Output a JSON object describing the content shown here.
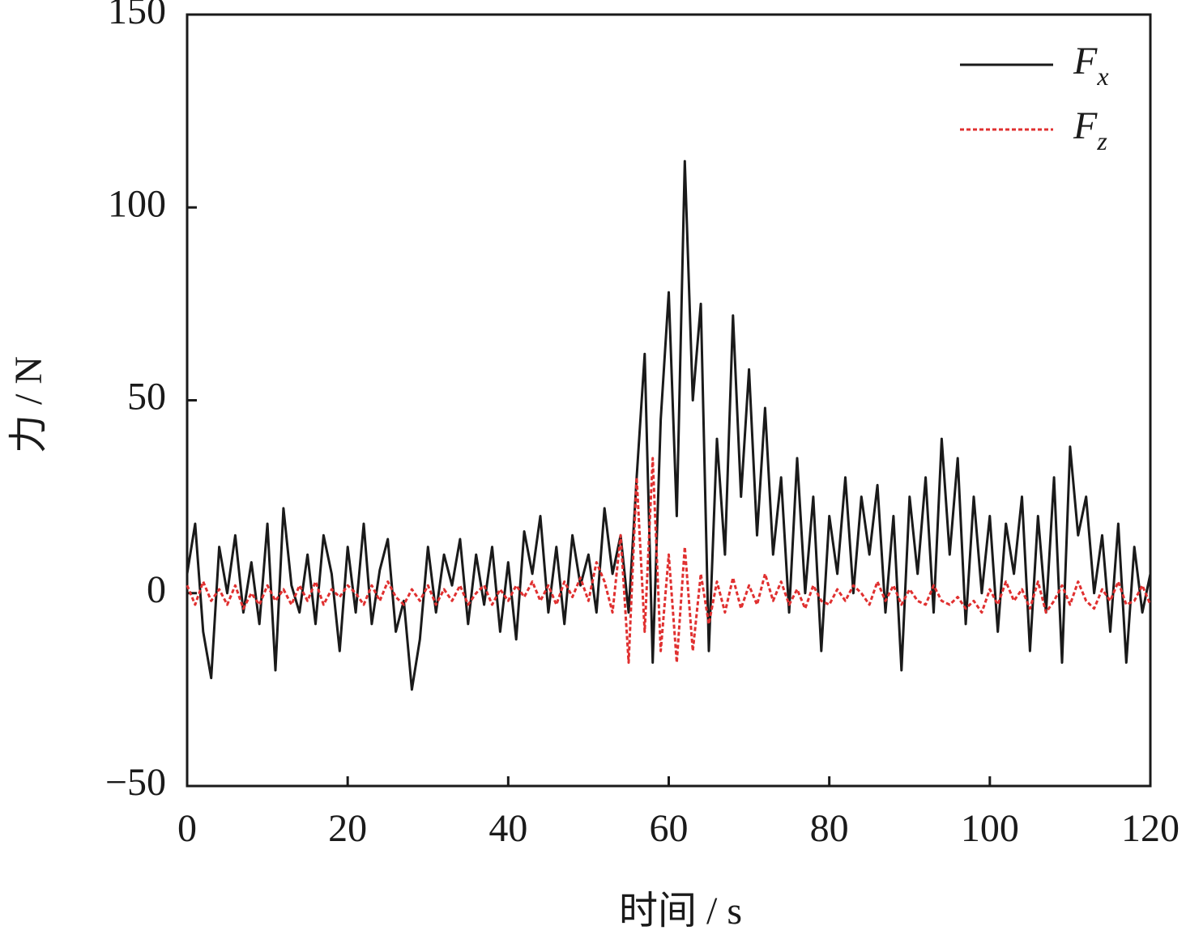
{
  "chart_data": {
    "type": "line",
    "xlabel": "时间 / s",
    "ylabel": "力 / N",
    "x": [
      0,
      1,
      2,
      3,
      4,
      5,
      6,
      7,
      8,
      9,
      10,
      11,
      12,
      13,
      14,
      15,
      16,
      17,
      18,
      19,
      20,
      21,
      22,
      23,
      24,
      25,
      26,
      27,
      28,
      29,
      30,
      31,
      32,
      33,
      34,
      35,
      36,
      37,
      38,
      39,
      40,
      41,
      42,
      43,
      44,
      45,
      46,
      47,
      48,
      49,
      50,
      51,
      52,
      53,
      54,
      55,
      56,
      57,
      58,
      59,
      60,
      61,
      62,
      63,
      64,
      65,
      66,
      67,
      68,
      69,
      70,
      71,
      72,
      73,
      74,
      75,
      76,
      77,
      78,
      79,
      80,
      81,
      82,
      83,
      84,
      85,
      86,
      87,
      88,
      89,
      90,
      91,
      92,
      93,
      94,
      95,
      96,
      97,
      98,
      99,
      100,
      101,
      102,
      103,
      104,
      105,
      106,
      107,
      108,
      109,
      110,
      111,
      112,
      113,
      114,
      115,
      116,
      117,
      118,
      119,
      120
    ],
    "series": [
      {
        "name": "Fx",
        "color": "#1a1a1a",
        "dash": "solid",
        "values": [
          5,
          18,
          -10,
          -22,
          12,
          0,
          15,
          -5,
          8,
          -8,
          18,
          -20,
          22,
          2,
          -5,
          10,
          -8,
          15,
          5,
          -15,
          12,
          -5,
          18,
          -8,
          6,
          14,
          -10,
          -2,
          -25,
          -12,
          12,
          -5,
          10,
          2,
          14,
          -8,
          10,
          -3,
          12,
          -10,
          8,
          -12,
          16,
          5,
          20,
          -5,
          12,
          -8,
          15,
          2,
          10,
          -5,
          22,
          5,
          15,
          -5,
          30,
          62,
          -18,
          45,
          78,
          20,
          112,
          50,
          75,
          -15,
          40,
          10,
          72,
          25,
          58,
          15,
          48,
          10,
          30,
          -5,
          35,
          0,
          25,
          -15,
          20,
          5,
          30,
          0,
          25,
          10,
          28,
          -5,
          20,
          -20,
          25,
          5,
          30,
          -5,
          40,
          10,
          35,
          -8,
          25,
          0,
          20,
          -10,
          18,
          5,
          25,
          -15,
          20,
          -5,
          30,
          -18,
          38,
          15,
          25,
          0,
          15,
          -10,
          18,
          -18,
          12,
          -5,
          5
        ]
      },
      {
        "name": "Fz",
        "color": "#e03030",
        "dash": "dashed",
        "values": [
          2,
          -3,
          3,
          -2,
          1,
          -3,
          2,
          -4,
          0,
          -3,
          2,
          -2,
          1,
          -3,
          2,
          -2,
          3,
          -3,
          1,
          -1,
          2,
          0,
          -3,
          2,
          -2,
          3,
          -1,
          -3,
          1,
          -2,
          2,
          -3,
          1,
          -2,
          2,
          -3,
          0,
          2,
          -3,
          1,
          -2,
          2,
          -1,
          3,
          -2,
          2,
          -3,
          3,
          -1,
          4,
          -2,
          8,
          3,
          -5,
          15,
          -18,
          30,
          -10,
          35,
          -15,
          10,
          -18,
          12,
          -15,
          5,
          -8,
          3,
          -5,
          4,
          -4,
          2,
          -3,
          5,
          -2,
          3,
          -3,
          1,
          -4,
          2,
          -2,
          -3,
          1,
          -2,
          2,
          0,
          -3,
          3,
          -2,
          2,
          -3,
          1,
          -2,
          -3,
          2,
          -2,
          -3,
          -1,
          -4,
          -2,
          -5,
          1,
          -3,
          3,
          -2,
          1,
          -4,
          3,
          -5,
          -2,
          2,
          -3,
          3,
          -2,
          -4,
          1,
          -2,
          3,
          -3,
          -2,
          2,
          -3
        ]
      }
    ],
    "xlim": [
      0,
      120
    ],
    "xticks": [
      0,
      20,
      40,
      60,
      80,
      100,
      120
    ],
    "ylim": [
      -50,
      150
    ],
    "yticks": [
      {
        "value": -50,
        "label": "−50"
      },
      0,
      50,
      100,
      150
    ],
    "legend": "upper right",
    "grid": false
  }
}
